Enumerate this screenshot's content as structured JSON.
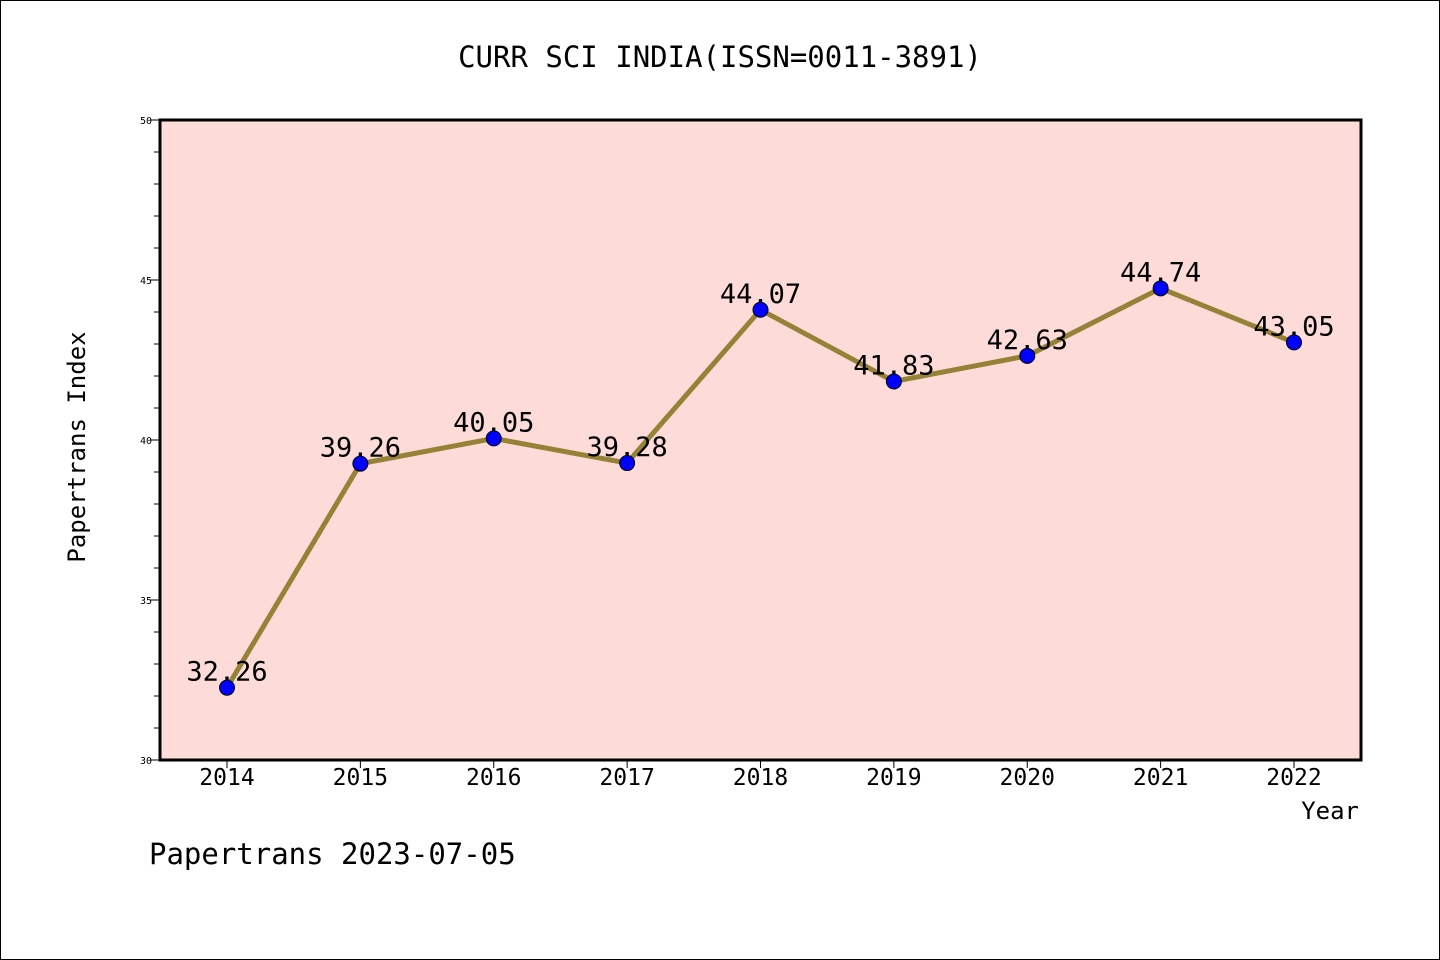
{
  "chart_data": {
    "type": "line",
    "title": "CURR SCI INDIA(ISSN=0011-3891)",
    "xlabel": "Year",
    "ylabel": "Papertrans Index",
    "footer": "Papertrans 2023-07-05",
    "x": [
      "2014",
      "2015",
      "2016",
      "2017",
      "2018",
      "2019",
      "2020",
      "2021",
      "2022"
    ],
    "series": [
      {
        "values": [
          32.26,
          39.26,
          40.05,
          39.28,
          44.07,
          41.83,
          42.63,
          44.74,
          43.05
        ],
        "data_labels": [
          "32.26",
          "39.26",
          "40.05",
          "39.28",
          "44.07",
          "41.83",
          "42.63",
          "44.74",
          "43.05"
        ],
        "line_color": "#968236",
        "marker_color": "#0000ff"
      }
    ],
    "ylim": [
      30,
      50
    ],
    "y_ticks": [
      "30",
      "35",
      "40",
      "45",
      "50"
    ],
    "grid": false,
    "plot_background": "#fddbd8"
  }
}
